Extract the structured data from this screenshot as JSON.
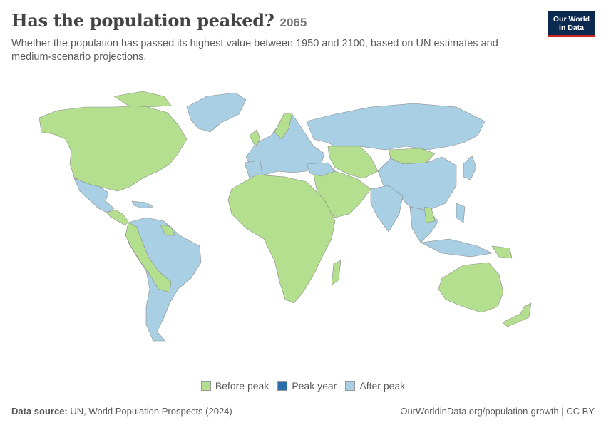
{
  "header": {
    "title": "Has the population peaked?",
    "year": "2065",
    "subtitle": "Whether the population has passed its highest value between 1950 and 2100, based on UN estimates and medium-scenario projections."
  },
  "logo": {
    "line1": "Our World",
    "line2": "in Data"
  },
  "colors": {
    "before_peak": "#b4df8e",
    "peak_year": "#2a6fa8",
    "after_peak": "#a8cfe3",
    "border": "#8a8a8a"
  },
  "legend": {
    "items": [
      {
        "label": "Before peak",
        "color": "#b4df8e"
      },
      {
        "label": "Peak year",
        "color": "#2a6fa8"
      },
      {
        "label": "After peak",
        "color": "#a8cfe3"
      }
    ]
  },
  "map": {
    "regions": [
      {
        "name": "North America",
        "status": "Before peak"
      },
      {
        "name": "Greenland",
        "status": "After peak"
      },
      {
        "name": "Mexico",
        "status": "After peak"
      },
      {
        "name": "Central America",
        "status": "Before peak"
      },
      {
        "name": "South America",
        "status": "After peak"
      },
      {
        "name": "Andean South America",
        "status": "Before peak"
      },
      {
        "name": "Europe",
        "status": "After peak"
      },
      {
        "name": "Russia",
        "status": "After peak"
      },
      {
        "name": "Central Asia",
        "status": "Before peak"
      },
      {
        "name": "Mongolia",
        "status": "Before peak"
      },
      {
        "name": "China",
        "status": "After peak"
      },
      {
        "name": "India",
        "status": "After peak"
      },
      {
        "name": "Middle East",
        "status": "Before peak"
      },
      {
        "name": "Africa",
        "status": "Before peak"
      },
      {
        "name": "Southeast Asia",
        "status": "After peak"
      },
      {
        "name": "Australia",
        "status": "Before peak"
      },
      {
        "name": "New Zealand",
        "status": "Before peak"
      }
    ]
  },
  "footer": {
    "source_label": "Data source:",
    "source_text": "UN, World Population Prospects (2024)",
    "credit": "OurWorldinData.org/population-growth | CC BY"
  }
}
